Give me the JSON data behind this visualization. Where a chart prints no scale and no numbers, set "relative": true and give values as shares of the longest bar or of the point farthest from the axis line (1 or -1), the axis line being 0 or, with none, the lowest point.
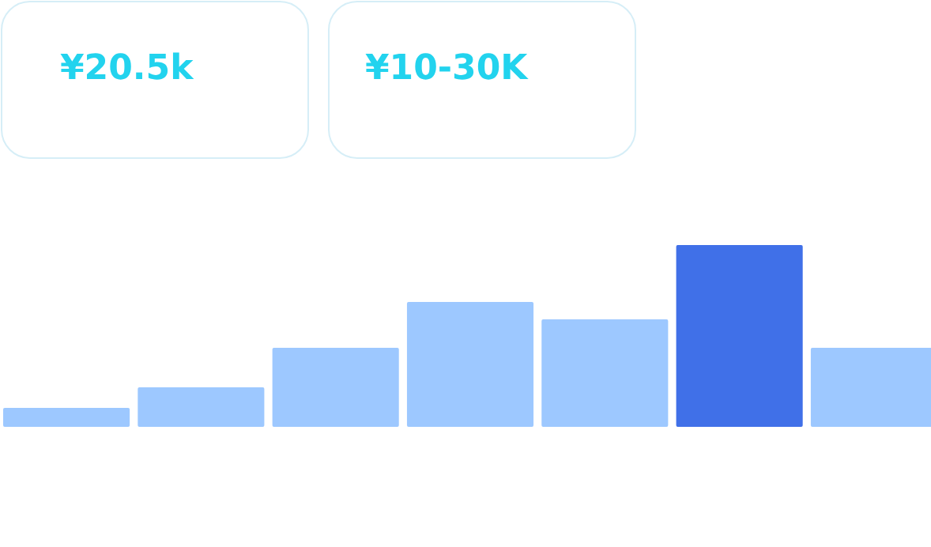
{
  "chart_data": {
    "type": "bar",
    "relative": true,
    "categories": [
      null,
      null,
      null,
      null,
      null,
      null,
      null
    ],
    "values": [
      0.104,
      0.217,
      0.435,
      0.687,
      0.591,
      1,
      0.435
    ],
    "colors": [
      "#9dc8ff",
      "#9dc8ff",
      "#9dc8ff",
      "#9dc8ff",
      "#9dc8ff",
      "#4070e8",
      "#9dc8ff"
    ],
    "annotations": [
      "¥20.5k",
      "¥10-30K"
    ]
  }
}
